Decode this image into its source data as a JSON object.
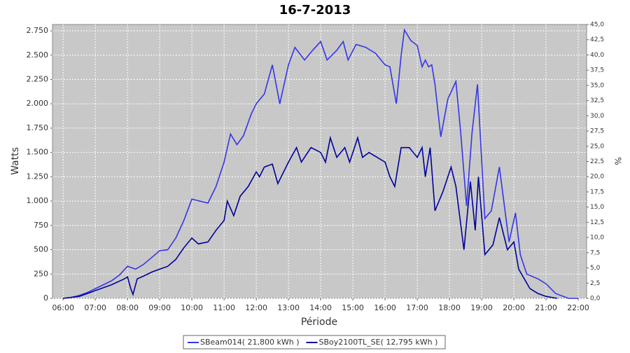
{
  "chart_data": {
    "type": "line",
    "title": "16-7-2013",
    "y_label": "Watts",
    "x_label": "Période",
    "y2_label": "%",
    "xlim": [
      5.67,
      22.26
    ],
    "ylim": [
      0,
      2815
    ],
    "y2lim": [
      0,
      45
    ],
    "grid": true,
    "legend": "bottom",
    "xticks": [
      {
        "value": 6,
        "label": "06:00"
      },
      {
        "value": 7,
        "label": "07:00"
      },
      {
        "value": 8,
        "label": "08:00"
      },
      {
        "value": 9,
        "label": "09:00"
      },
      {
        "value": 10,
        "label": "10:00"
      },
      {
        "value": 11,
        "label": "11:00"
      },
      {
        "value": 12,
        "label": "12:00"
      },
      {
        "value": 13,
        "label": "13:00"
      },
      {
        "value": 14,
        "label": "14:00"
      },
      {
        "value": 15,
        "label": "15:00"
      },
      {
        "value": 16,
        "label": "16:00"
      },
      {
        "value": 17,
        "label": "17:00"
      },
      {
        "value": 18,
        "label": "18:00"
      },
      {
        "value": 19,
        "label": "19:00"
      },
      {
        "value": 20,
        "label": "20:00"
      },
      {
        "value": 21,
        "label": "21:00"
      },
      {
        "value": 22,
        "label": "22:00"
      }
    ],
    "yticks": [
      0,
      250,
      500,
      750,
      {
        "value": 1000,
        "label": "1.000"
      },
      {
        "value": 1250,
        "label": "1.250"
      },
      {
        "value": 1500,
        "label": "1.500"
      },
      {
        "value": 1750,
        "label": "1.750"
      },
      {
        "value": 2000,
        "label": "2.000"
      },
      {
        "value": 2250,
        "label": "2.250"
      },
      {
        "value": 2500,
        "label": "2.500"
      },
      {
        "value": 2750,
        "label": "2.750"
      }
    ],
    "y2ticks": [
      {
        "value": 0,
        "label": "0,0"
      },
      {
        "value": 2.5,
        "label": "2,5"
      },
      {
        "value": 5,
        "label": "5,0"
      },
      {
        "value": 7.5,
        "label": "7,5"
      },
      {
        "value": 10,
        "label": "10,0"
      },
      {
        "value": 12.5,
        "label": "12,5"
      },
      {
        "value": 15,
        "label": "15,0"
      },
      {
        "value": 17.5,
        "label": "17,5"
      },
      {
        "value": 20,
        "label": "20,0"
      },
      {
        "value": 22.5,
        "label": "22,5"
      },
      {
        "value": 25,
        "label": "25,0"
      },
      {
        "value": 27.5,
        "label": "27,5"
      },
      {
        "value": 30,
        "label": "30,0"
      },
      {
        "value": 32.5,
        "label": "32,5"
      },
      {
        "value": 35,
        "label": "35,0"
      },
      {
        "value": 37.5,
        "label": "37,5"
      },
      {
        "value": 40,
        "label": "40,0"
      },
      {
        "value": 42.5,
        "label": "42,5"
      },
      {
        "value": 45,
        "label": "45,0"
      }
    ],
    "series": [
      {
        "name": "SBeam014( 21,800 kWh )",
        "color": "#3535e8",
        "x": [
          6.0,
          6.25,
          6.5,
          6.75,
          7.0,
          7.25,
          7.5,
          7.75,
          8.0,
          8.25,
          8.5,
          8.75,
          9.0,
          9.25,
          9.5,
          9.75,
          10.0,
          10.25,
          10.5,
          10.75,
          11.0,
          11.2,
          11.4,
          11.6,
          11.85,
          12.0,
          12.25,
          12.5,
          12.73,
          13.0,
          13.2,
          13.5,
          13.75,
          14.0,
          14.2,
          14.5,
          14.7,
          14.85,
          15.1,
          15.4,
          15.7,
          16.0,
          16.15,
          16.35,
          16.5,
          16.6,
          16.8,
          17.0,
          17.15,
          17.25,
          17.35,
          17.45,
          17.55,
          17.73,
          17.95,
          18.2,
          18.35,
          18.53,
          18.7,
          18.87,
          19.1,
          19.3,
          19.55,
          19.85,
          20.05,
          20.2,
          20.4,
          20.75,
          21.0,
          21.3,
          21.7,
          22.0
        ],
        "values": [
          0,
          10,
          30,
          60,
          100,
          140,
          180,
          240,
          330,
          300,
          350,
          420,
          490,
          500,
          620,
          800,
          1020,
          1000,
          980,
          1150,
          1400,
          1690,
          1580,
          1670,
          1900,
          2000,
          2100,
          2400,
          2000,
          2400,
          2580,
          2450,
          2550,
          2640,
          2450,
          2550,
          2640,
          2450,
          2610,
          2580,
          2520,
          2400,
          2380,
          2000,
          2500,
          2760,
          2650,
          2600,
          2380,
          2450,
          2380,
          2400,
          2200,
          1660,
          2050,
          2230,
          1700,
          950,
          1700,
          2200,
          820,
          900,
          1350,
          580,
          880,
          450,
          250,
          200,
          150,
          50,
          0,
          0
        ]
      },
      {
        "name": "SBoy2100TL_SE( 12,795 kWh )",
        "color": "#000099",
        "x": [
          6.0,
          6.5,
          7.0,
          7.5,
          7.9,
          8.0,
          8.1,
          8.17,
          8.3,
          8.5,
          8.75,
          9.0,
          9.25,
          9.5,
          9.75,
          10.0,
          10.2,
          10.5,
          10.75,
          11.0,
          11.1,
          11.3,
          11.5,
          11.75,
          12.0,
          12.1,
          12.25,
          12.5,
          12.67,
          13.0,
          13.25,
          13.4,
          13.7,
          14.0,
          14.15,
          14.3,
          14.5,
          14.75,
          14.9,
          15.15,
          15.3,
          15.5,
          15.75,
          16.0,
          16.15,
          16.3,
          16.5,
          16.75,
          17.0,
          17.15,
          17.25,
          17.4,
          17.55,
          17.8,
          18.05,
          18.2,
          18.45,
          18.65,
          18.8,
          18.9,
          19.1,
          19.35,
          19.55,
          19.8,
          20.0,
          20.15,
          20.5,
          20.75,
          21.0,
          21.35
        ],
        "values": [
          0,
          20,
          80,
          140,
          200,
          220,
          100,
          40,
          200,
          230,
          270,
          300,
          330,
          400,
          520,
          620,
          560,
          580,
          700,
          800,
          1000,
          850,
          1050,
          1150,
          1300,
          1250,
          1350,
          1380,
          1180,
          1400,
          1550,
          1400,
          1550,
          1500,
          1400,
          1650,
          1450,
          1550,
          1400,
          1650,
          1450,
          1500,
          1450,
          1400,
          1250,
          1150,
          1550,
          1550,
          1450,
          1550,
          1250,
          1550,
          900,
          1100,
          1350,
          1150,
          500,
          1200,
          700,
          1250,
          450,
          550,
          830,
          500,
          580,
          300,
          100,
          50,
          20,
          0
        ]
      }
    ]
  }
}
